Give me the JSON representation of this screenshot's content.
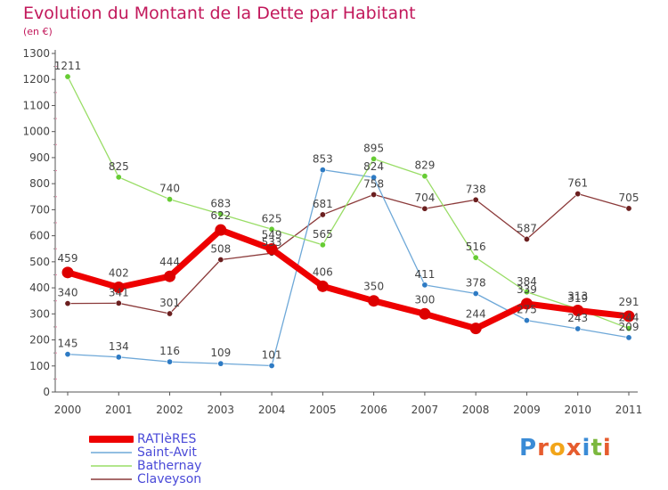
{
  "title": "Evolution du Montant de la Dette par Habitant",
  "subtitle": "(en €)",
  "brand": "Proxiti",
  "brand_colors": [
    "#3a8bd6",
    "#e65c2e",
    "#f2a51a",
    "#e65c2e",
    "#3a8bd6",
    "#7cb83e",
    "#e65c2e"
  ],
  "chart_data": {
    "type": "line",
    "x": [
      "2000",
      "2001",
      "2002",
      "2003",
      "2004",
      "2005",
      "2006",
      "2007",
      "2008",
      "2009",
      "2010",
      "2011"
    ],
    "yticks": [
      "0",
      "100",
      "200",
      "300",
      "400",
      "500",
      "600",
      "700",
      "800",
      "900",
      "1000",
      "1100",
      "1200",
      "1300"
    ],
    "ylim": [
      0,
      1300
    ],
    "grid": false,
    "legend_position": "bottom-left",
    "series": [
      {
        "name": "RATIèRES",
        "color": "#ee0000",
        "marker": "#dd0000",
        "width": 7,
        "values": [
          459,
          402,
          444,
          622,
          549,
          406,
          350,
          300,
          244,
          339,
          313,
          291
        ],
        "labels": [
          "459",
          "402",
          "444",
          "622",
          "549",
          "406",
          "350",
          "300",
          "244",
          "339",
          "313",
          "291"
        ]
      },
      {
        "name": "Saint-Avit",
        "color": "#6ea8d8",
        "marker": "#2e7bc4",
        "width": 1.3,
        "values": [
          145,
          134,
          116,
          109,
          101,
          853,
          824,
          411,
          378,
          275,
          243,
          209
        ],
        "labels": [
          "145",
          "134",
          "116",
          "109",
          "101",
          "853",
          "824",
          "411",
          "378",
          "275",
          "243",
          "209"
        ]
      },
      {
        "name": "Bathernay",
        "color": "#99dd66",
        "marker": "#66cc33",
        "width": 1.3,
        "values": [
          1211,
          825,
          740,
          683,
          625,
          565,
          895,
          829,
          516,
          384,
          319,
          244
        ],
        "labels": [
          "1211",
          "825",
          "740",
          "683",
          "625",
          "565",
          "895",
          "829",
          "516",
          "384",
          "319",
          "244"
        ]
      },
      {
        "name": "Claveyson",
        "color": "#8b3a3a",
        "marker": "#6b1f1f",
        "width": 1.3,
        "values": [
          340,
          341,
          301,
          508,
          533,
          681,
          758,
          704,
          738,
          587,
          761,
          705
        ],
        "labels": [
          "340",
          "341",
          "301",
          "508",
          "533",
          "681",
          "758",
          "704",
          "738",
          "587",
          "761",
          "705"
        ]
      }
    ]
  }
}
